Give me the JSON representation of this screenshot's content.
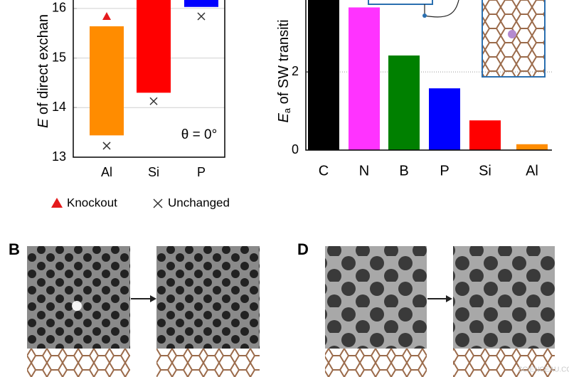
{
  "chart_data": [
    {
      "type": "range_bar",
      "ylabel": {
        "symbol": "E",
        "rest": " of direct exchan"
      },
      "categories": [
        "Al",
        "Si",
        "P"
      ],
      "low": [
        13.44,
        14.3,
        16.03
      ],
      "high": [
        15.64,
        16.17,
        16.17
      ],
      "colors": [
        "#ff8c00",
        "#ff0000",
        "#0000ff"
      ],
      "series": [
        {
          "name": "Knockout",
          "marker": "triangle",
          "color": "#e41a1c",
          "values": [
            15.84,
            null,
            null
          ]
        },
        {
          "name": "Unchanged",
          "marker": "x",
          "color": "#333333",
          "values": [
            13.23,
            14.13,
            15.84
          ]
        }
      ],
      "annotation": "θ = 0°",
      "ylim": [
        13,
        16.17
      ],
      "yticks": [
        13,
        14,
        15,
        16
      ],
      "grid": true
    },
    {
      "type": "bar",
      "ylabel": {
        "symbol": "E",
        "subscript": "a",
        "rest": " of SW transiti"
      },
      "categories": [
        "C",
        "N",
        "B",
        "P",
        "Si",
        "Al"
      ],
      "values": [
        3.84,
        3.65,
        2.42,
        1.58,
        0.76,
        0.15
      ],
      "colors": [
        "#000000",
        "#ff33ff",
        "#008000",
        "#0000ff",
        "#ff0000",
        "#ff8c00"
      ],
      "ylim": [
        0,
        3.84
      ],
      "yticks": [
        0,
        2
      ],
      "grid": true
    }
  ],
  "panels": [
    "B",
    "D"
  ],
  "watermark": "SCIENCEAU.COM"
}
